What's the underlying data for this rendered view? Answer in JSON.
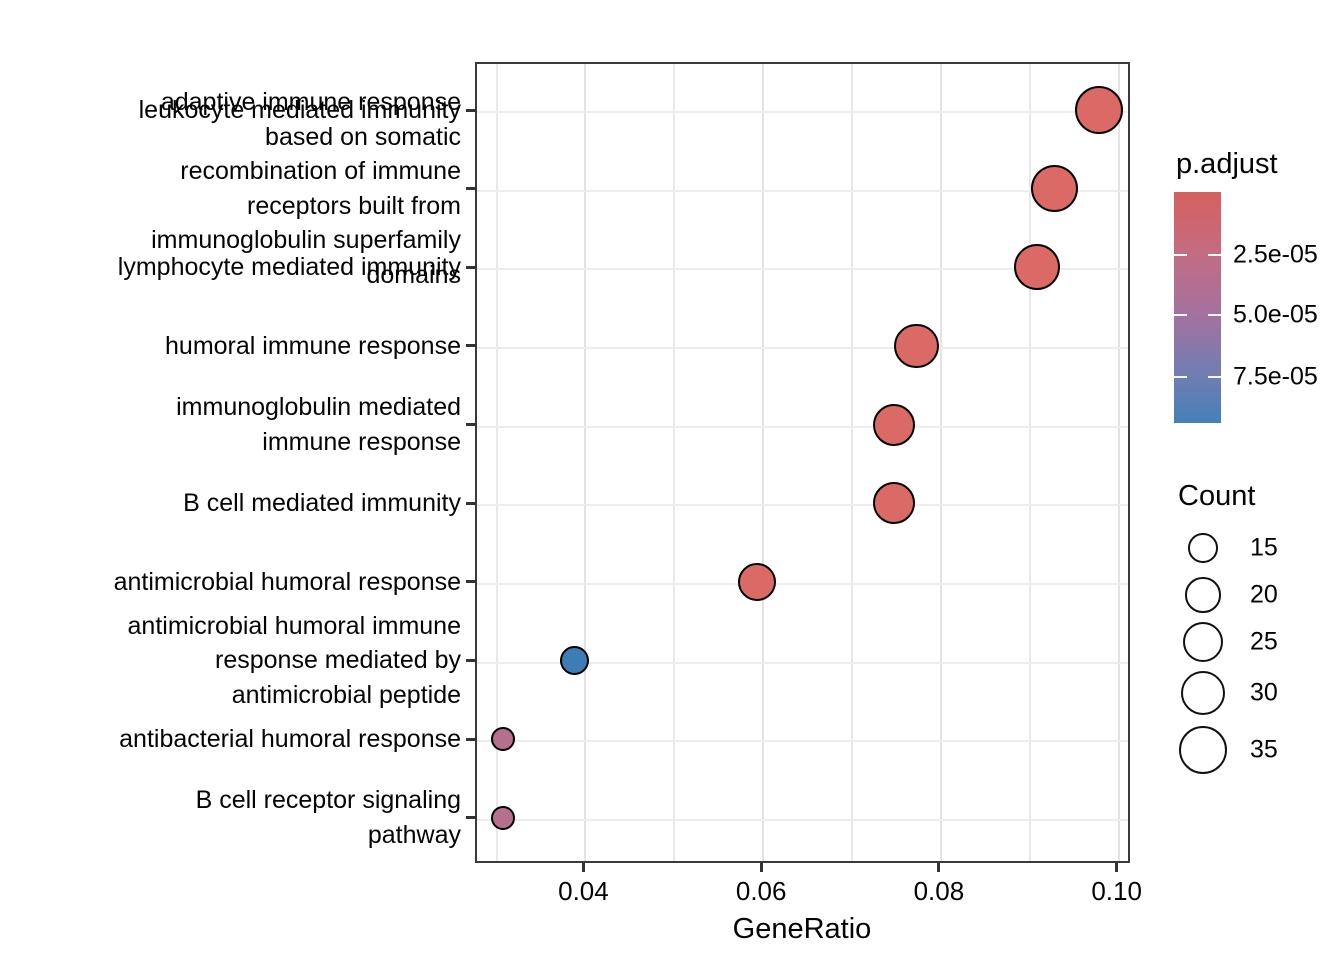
{
  "chart_data": {
    "type": "scatter",
    "title": "",
    "xlabel": "GeneRatio",
    "xlim": [
      0.0278,
      0.1015
    ],
    "x_ticks": [
      {
        "label": "0.04",
        "value": 0.04
      },
      {
        "label": "0.06",
        "value": 0.06
      },
      {
        "label": "0.08",
        "value": 0.08
      },
      {
        "label": "0.10",
        "value": 0.1
      }
    ],
    "x_minor_ticks": [
      0.03,
      0.05,
      0.07,
      0.09
    ],
    "grid": true,
    "points": [
      {
        "term": "leukocyte mediated immunity",
        "label_lines": [
          "leukocyte mediated immunity"
        ],
        "gene_ratio": 0.098,
        "count": 35,
        "p_adjust_est": 1e-06,
        "color": "#DB6A66"
      },
      {
        "term": "adaptive immune response based on somatic recombination of immune receptors built from immunoglobulin superfamily domains",
        "label_lines": [
          "adaptive immune response",
          "based on somatic",
          "recombination of immune",
          "receptors built from",
          "immunoglobulin superfamily",
          "domains"
        ],
        "gene_ratio": 0.093,
        "count": 33,
        "p_adjust_est": 1e-06,
        "color": "#DB6A66"
      },
      {
        "term": "lymphocyte mediated immunity",
        "label_lines": [
          "lymphocyte mediated immunity"
        ],
        "gene_ratio": 0.091,
        "count": 32,
        "p_adjust_est": 1e-06,
        "color": "#DB6A66"
      },
      {
        "term": "humoral immune response",
        "label_lines": [
          "humoral immune response"
        ],
        "gene_ratio": 0.0775,
        "count": 30,
        "p_adjust_est": 1e-06,
        "color": "#DB6A66"
      },
      {
        "term": "immunoglobulin mediated immune response",
        "label_lines": [
          "immunoglobulin mediated",
          "immune response"
        ],
        "gene_ratio": 0.075,
        "count": 27,
        "p_adjust_est": 1e-06,
        "color": "#DB6A66"
      },
      {
        "term": "B cell mediated immunity",
        "label_lines": [
          "B cell mediated immunity"
        ],
        "gene_ratio": 0.075,
        "count": 27,
        "p_adjust_est": 1e-06,
        "color": "#DB6A66"
      },
      {
        "term": "antimicrobial humoral response",
        "label_lines": [
          "antimicrobial humoral response"
        ],
        "gene_ratio": 0.0595,
        "count": 23,
        "p_adjust_est": 3e-06,
        "color": "#DB6A66"
      },
      {
        "term": "antimicrobial humoral immune response mediated by antimicrobial peptide",
        "label_lines": [
          "antimicrobial humoral immune",
          "response mediated by",
          "antimicrobial peptide"
        ],
        "gene_ratio": 0.039,
        "count": 15,
        "p_adjust_est": 9e-05,
        "color": "#3D7CB5"
      },
      {
        "term": "antibacterial humoral response",
        "label_lines": [
          "antibacterial humoral response"
        ],
        "gene_ratio": 0.031,
        "count": 11,
        "p_adjust_est": 5e-05,
        "color": "#B4708C"
      },
      {
        "term": "B cell receptor signaling pathway",
        "label_lines": [
          "B cell receptor signaling",
          "pathway"
        ],
        "gene_ratio": 0.031,
        "count": 11,
        "p_adjust_est": 5e-05,
        "color": "#B4708C"
      }
    ],
    "color_legend": {
      "title": "p.adjust",
      "tick_labels": [
        "2.5e-05",
        "5.0e-05",
        "7.5e-05"
      ],
      "tick_values": [
        2.5e-05,
        5e-05,
        7.5e-05
      ],
      "value_range": [
        1e-09,
        9.4e-05
      ],
      "gradient": [
        {
          "color": "#D6605F",
          "pos": 0
        },
        {
          "color": "#C36C82",
          "pos": 27
        },
        {
          "color": "#A471A0",
          "pos": 53
        },
        {
          "color": "#6E7EB3",
          "pos": 80
        },
        {
          "color": "#4480B8",
          "pos": 100
        }
      ]
    },
    "size_legend": {
      "title": "Count",
      "values": [
        15,
        20,
        25,
        30,
        35
      ]
    }
  }
}
